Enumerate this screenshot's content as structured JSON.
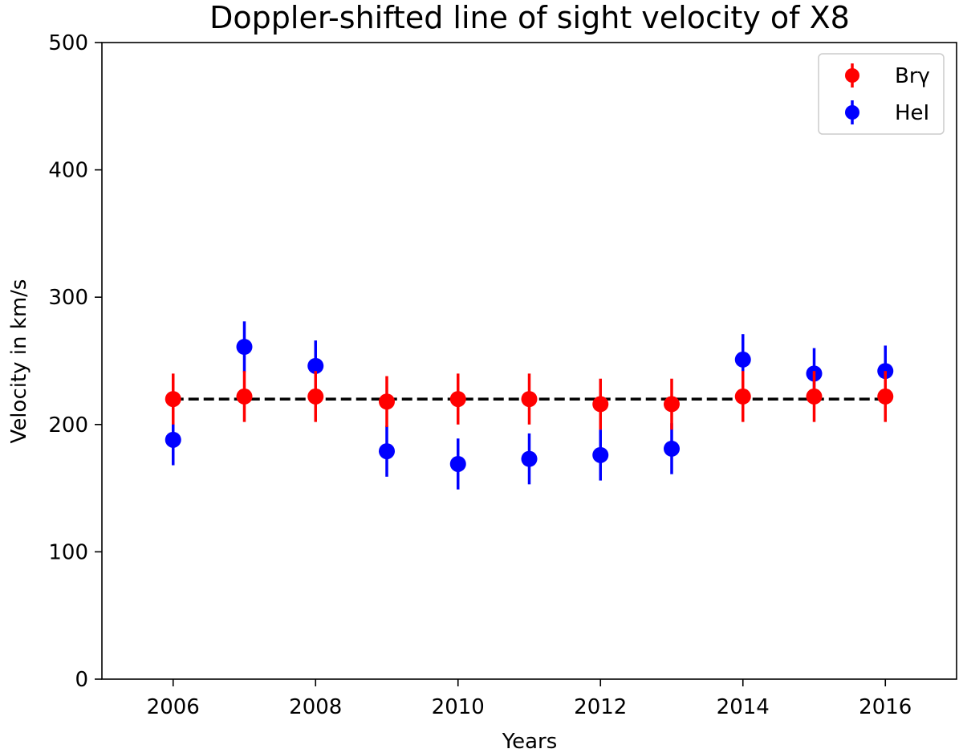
{
  "chart_data": {
    "type": "scatter",
    "title": "Doppler-shifted line of sight velocity of X8",
    "xlabel": "Years",
    "ylabel": "Velocity in km/s",
    "xlim": [
      2005,
      2017
    ],
    "ylim": [
      0,
      500
    ],
    "xticks": [
      "2006",
      "2008",
      "2010",
      "2012",
      "2014",
      "2016"
    ],
    "yticks": [
      "0",
      "100",
      "200",
      "300",
      "400",
      "500"
    ],
    "grid": false,
    "legend_position": "top-right",
    "reference_line": {
      "y": 220,
      "style": "dashed",
      "color": "#000000"
    },
    "series": [
      {
        "name": "Brγ",
        "color": "#ff0000",
        "x": [
          2006,
          2007,
          2008,
          2009,
          2010,
          2011,
          2012,
          2013,
          2014,
          2015,
          2016
        ],
        "y": [
          220,
          222,
          222,
          218,
          220,
          220,
          216,
          216,
          222,
          222,
          222
        ],
        "error": [
          20,
          20,
          20,
          20,
          20,
          20,
          20,
          20,
          20,
          20,
          20
        ]
      },
      {
        "name": "HeI",
        "color": "#0000ff",
        "x": [
          2006,
          2007,
          2008,
          2009,
          2010,
          2011,
          2012,
          2013,
          2014,
          2015,
          2016
        ],
        "y": [
          188,
          261,
          246,
          179,
          169,
          173,
          176,
          181,
          251,
          240,
          242
        ],
        "error": [
          20,
          20,
          20,
          20,
          20,
          20,
          20,
          20,
          20,
          20,
          20
        ]
      }
    ]
  }
}
